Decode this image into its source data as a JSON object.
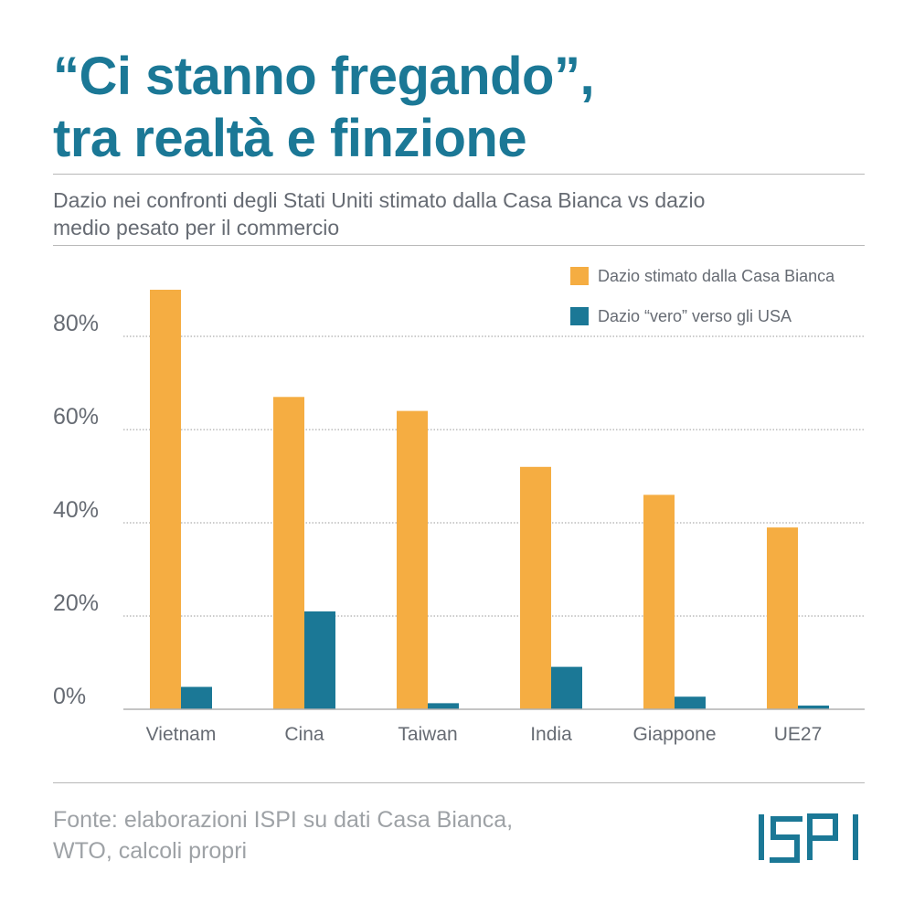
{
  "title_lines": [
    "“Ci stanno fregando”,",
    "tra realtà e finzione"
  ],
  "subtitle_lines": [
    "Dazio nei confronti degli Stati Uniti stimato dalla Casa Bianca vs dazio",
    "medio pesato per il commercio"
  ],
  "source_lines": [
    "Fonte: elaborazioni ISPI su dati Casa Bianca,",
    "WTO, calcoli propri"
  ],
  "logo_text": "ISPI",
  "colors": {
    "title": "#1b7896",
    "estimated": "#f5ad42",
    "real": "#1b7896",
    "axis_text": "#666b73",
    "grid": "#9a9a9a"
  },
  "chart_data": {
    "type": "bar",
    "categories": [
      "Vietnam",
      "Cina",
      "Taiwan",
      "India",
      "Giappone",
      "UE27"
    ],
    "series": [
      {
        "name": "Dazio stimato dalla Casa Bianca",
        "color": "#f5ad42",
        "values": [
          90,
          67,
          64,
          52,
          46,
          39
        ]
      },
      {
        "name": "Dazio “vero” verso gli USA",
        "color": "#1b7896",
        "values": [
          4.8,
          21,
          1.3,
          9.1,
          2.7,
          0.8
        ]
      }
    ],
    "ylim": [
      0,
      100
    ],
    "yticks": [
      0,
      20,
      40,
      60,
      80
    ],
    "ytick_suffix": "%",
    "grid": true,
    "legend_position": "top-right",
    "xlabel": "",
    "ylabel": ""
  }
}
